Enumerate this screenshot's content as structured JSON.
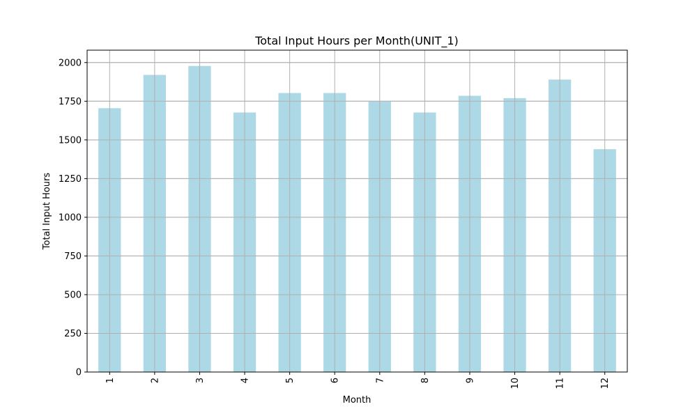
{
  "chart_data": {
    "type": "bar",
    "title": "Total Input Hours per Month(UNIT_1)",
    "xlabel": "Month",
    "ylabel": "Total Input Hours",
    "categories": [
      "1",
      "2",
      "3",
      "4",
      "5",
      "6",
      "7",
      "8",
      "9",
      "10",
      "11",
      "12"
    ],
    "values": [
      1705,
      1920,
      1978,
      1677,
      1803,
      1803,
      1748,
      1677,
      1785,
      1770,
      1890,
      1440
    ],
    "ylim": [
      0,
      2080
    ],
    "yticks": [
      0,
      250,
      500,
      750,
      1000,
      1250,
      1500,
      1750,
      2000
    ],
    "grid": true,
    "bar_color": "#add8e6",
    "grid_color": "#b0b0b0"
  }
}
